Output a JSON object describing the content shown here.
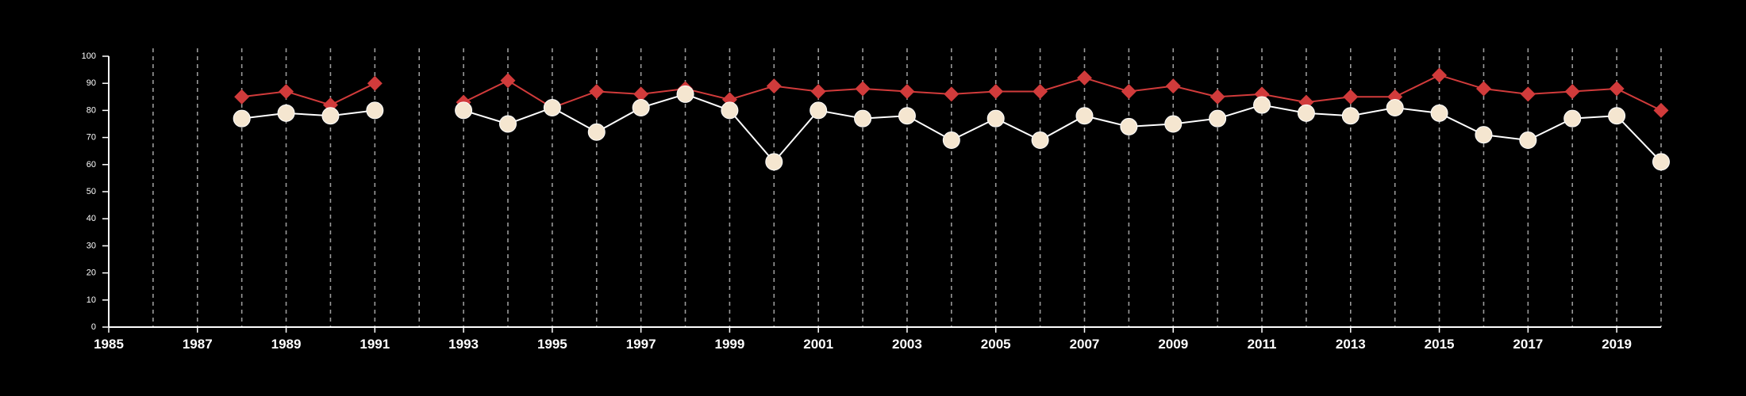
{
  "chart_data": {
    "type": "line",
    "title": "",
    "xlabel": "",
    "ylabel": "",
    "xlim": [
      1985,
      2020
    ],
    "ylim": [
      0,
      100
    ],
    "x_ticks": [
      1985,
      1987,
      1989,
      1991,
      1993,
      1995,
      1997,
      1999,
      2001,
      2003,
      2005,
      2007,
      2009,
      2011,
      2013,
      2015,
      2017,
      2019
    ],
    "x_tick_labels": [
      "1985",
      "1987",
      "1989",
      "1991",
      "1993",
      "1995",
      "1997",
      "1999",
      "2001",
      "2003",
      "2005",
      "2007",
      "2009",
      "2011",
      "2013",
      "2015",
      "2017",
      "2019"
    ],
    "y_ticks": [
      0,
      10,
      20,
      30,
      40,
      50,
      60,
      70,
      80,
      90,
      100
    ],
    "y_tick_labels": [
      "0",
      "10",
      "20",
      "30",
      "40",
      "50",
      "60",
      "70",
      "80",
      "90",
      "100"
    ],
    "vertical_gridlines_years": [
      1986,
      1987,
      1988,
      1989,
      1990,
      1991,
      1992,
      1993,
      1994,
      1995,
      1996,
      1997,
      1998,
      1999,
      2000,
      2001,
      2002,
      2003,
      2004,
      2005,
      2006,
      2007,
      2008,
      2009,
      2010,
      2011,
      2012,
      2013,
      2014,
      2015,
      2016,
      2017,
      2018,
      2019,
      2020
    ],
    "grid": "vertical dashed",
    "legend": "none",
    "background_color": "#000000",
    "series": [
      {
        "color": "#d13b3b",
        "marker": "diamond",
        "segments": [
          [
            [
              1988,
              85
            ],
            [
              1989,
              87
            ],
            [
              1990,
              82
            ],
            [
              1991,
              90
            ]
          ],
          [
            [
              1993,
              83
            ],
            [
              1994,
              91
            ],
            [
              1995,
              81
            ],
            [
              1996,
              87
            ],
            [
              1997,
              86
            ],
            [
              1998,
              88
            ],
            [
              1999,
              84
            ],
            [
              2000,
              89
            ],
            [
              2001,
              87
            ],
            [
              2002,
              88
            ],
            [
              2003,
              87
            ],
            [
              2004,
              86
            ],
            [
              2005,
              87
            ],
            [
              2006,
              87
            ],
            [
              2007,
              92
            ],
            [
              2008,
              87
            ],
            [
              2009,
              89
            ],
            [
              2010,
              85
            ],
            [
              2011,
              86
            ],
            [
              2012,
              83
            ],
            [
              2013,
              85
            ],
            [
              2014,
              85
            ],
            [
              2015,
              93
            ],
            [
              2016,
              88
            ],
            [
              2017,
              86
            ],
            [
              2018,
              87
            ],
            [
              2019,
              88
            ],
            [
              2020,
              80
            ]
          ]
        ]
      },
      {
        "color": "#f5e6d0",
        "line_color": "#ffffff",
        "marker": "circle",
        "segments": [
          [
            [
              1988,
              77
            ],
            [
              1989,
              79
            ],
            [
              1990,
              78
            ],
            [
              1991,
              80
            ]
          ],
          [
            [
              1993,
              80
            ],
            [
              1994,
              75
            ],
            [
              1995,
              81
            ],
            [
              1996,
              72
            ],
            [
              1997,
              81
            ],
            [
              1998,
              86
            ],
            [
              1999,
              80
            ],
            [
              2000,
              61
            ],
            [
              2001,
              80
            ],
            [
              2002,
              77
            ],
            [
              2003,
              78
            ],
            [
              2004,
              69
            ],
            [
              2005,
              77
            ],
            [
              2006,
              69
            ],
            [
              2007,
              78
            ],
            [
              2008,
              74
            ],
            [
              2009,
              75
            ],
            [
              2010,
              77
            ],
            [
              2011,
              82
            ],
            [
              2012,
              79
            ],
            [
              2013,
              78
            ],
            [
              2014,
              81
            ],
            [
              2015,
              79
            ],
            [
              2016,
              71
            ],
            [
              2017,
              69
            ],
            [
              2018,
              77
            ],
            [
              2019,
              78
            ],
            [
              2020,
              61
            ]
          ]
        ]
      }
    ]
  }
}
